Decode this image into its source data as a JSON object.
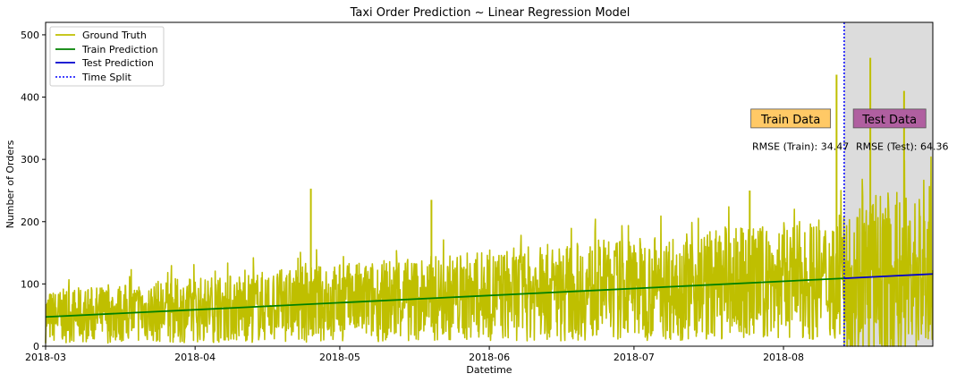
{
  "chart_data": {
    "type": "line",
    "title": "Taxi Order Prediction ~ Linear Regression Model",
    "xlabel": "Datetime",
    "ylabel": "Number of Orders",
    "x_range": [
      "2018-03-01",
      "2018-08-31"
    ],
    "ylim": [
      0,
      520
    ],
    "x_ticks": [
      "2018-03",
      "2018-04",
      "2018-05",
      "2018-06",
      "2018-07",
      "2018-08"
    ],
    "y_ticks": [
      "0",
      "100",
      "200",
      "300",
      "400",
      "500"
    ],
    "grid": false,
    "legend_position": "top-left",
    "split_date": "2018-08-13T14:00",
    "series": [
      {
        "name": "Ground Truth",
        "color": "#bfbf00",
        "style": "solid",
        "description_points": [
          {
            "x": "2018-03-01",
            "y": 60
          },
          {
            "x": "2018-03-15",
            "y": 55
          },
          {
            "x": "2018-04-01",
            "y": 65
          },
          {
            "x": "2018-04-15",
            "y": 70
          },
          {
            "x": "2018-04-25",
            "y": 253
          },
          {
            "x": "2018-05-01",
            "y": 75
          },
          {
            "x": "2018-05-20",
            "y": 235
          },
          {
            "x": "2018-06-01",
            "y": 85
          },
          {
            "x": "2018-07-01",
            "y": 95
          },
          {
            "x": "2018-07-25",
            "y": 250
          },
          {
            "x": "2018-08-12",
            "y": 436
          },
          {
            "x": "2018-08-19",
            "y": 463
          },
          {
            "x": "2018-08-26",
            "y": 410
          },
          {
            "x": "2018-08-31",
            "y": 150
          }
        ]
      },
      {
        "name": "Train Prediction",
        "color": "#008000",
        "style": "solid",
        "x": [
          "2018-03-01",
          "2018-08-13T14:00"
        ],
        "y": [
          47,
          109
        ]
      },
      {
        "name": "Test Prediction",
        "color": "#0000cd",
        "style": "solid",
        "x": [
          "2018-08-13T14:00",
          "2018-08-31T23:00"
        ],
        "y": [
          109,
          116
        ]
      },
      {
        "name": "Time Split",
        "color": "#0000ff",
        "style": "dotted"
      }
    ],
    "annotations": [
      {
        "text": "Train Data",
        "box_color": "#ffc966",
        "x": "2018-08-02T12:00",
        "y": 365
      },
      {
        "text": "Test Data",
        "box_color": "#b05fa0",
        "x": "2018-08-23",
        "y": 365
      },
      {
        "text": "RMSE (Train): 34.47",
        "x": "2018-07-25T12:00",
        "y": 315
      },
      {
        "text": "RMSE (Test): 64.36",
        "x": "2018-08-16T00:00",
        "y": 315
      }
    ]
  }
}
